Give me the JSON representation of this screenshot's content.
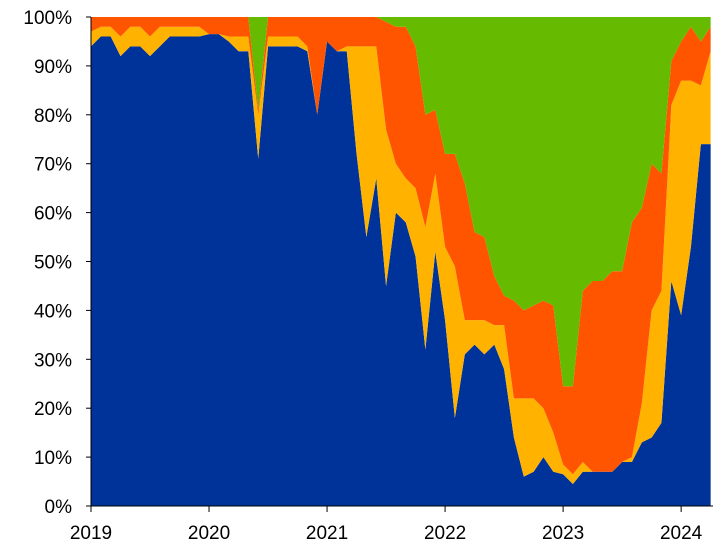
{
  "chart_data": {
    "type": "area",
    "stacked": true,
    "percent": true,
    "title": "",
    "xlabel": "",
    "ylabel": "",
    "ylim": [
      0,
      100
    ],
    "x_ticks": [
      "2019",
      "2020",
      "2021",
      "2022",
      "2023",
      "2024"
    ],
    "y_ticks": [
      "0%",
      "10%",
      "20%",
      "30%",
      "40%",
      "50%",
      "60%",
      "70%",
      "80%",
      "90%",
      "100%"
    ],
    "x": [
      2019.0,
      2019.083,
      2019.167,
      2019.25,
      2019.333,
      2019.417,
      2019.5,
      2019.583,
      2019.667,
      2019.75,
      2019.833,
      2019.917,
      2020.0,
      2020.083,
      2020.167,
      2020.25,
      2020.333,
      2020.417,
      2020.5,
      2020.583,
      2020.667,
      2020.75,
      2020.833,
      2020.917,
      2021.0,
      2021.083,
      2021.167,
      2021.25,
      2021.333,
      2021.417,
      2021.5,
      2021.583,
      2021.667,
      2021.75,
      2021.833,
      2021.917,
      2022.0,
      2022.083,
      2022.167,
      2022.25,
      2022.333,
      2022.417,
      2022.5,
      2022.583,
      2022.667,
      2022.75,
      2022.833,
      2022.917,
      2023.0,
      2023.083,
      2023.167,
      2023.25,
      2023.333,
      2023.417,
      2023.5,
      2023.583,
      2023.667,
      2023.75,
      2023.833,
      2023.917,
      2024.0,
      2024.083,
      2024.167,
      2024.25
    ],
    "series": [
      {
        "color": "#003399",
        "values": [
          94,
          96,
          96,
          92,
          94,
          94,
          92,
          94,
          96,
          96,
          96,
          96,
          96.5,
          96.5,
          95,
          93,
          93,
          71,
          94,
          94,
          94,
          94,
          93,
          80,
          95,
          93,
          93,
          72,
          55,
          67,
          45,
          60,
          58,
          51,
          32,
          52,
          38,
          18,
          31,
          33,
          31,
          33,
          28,
          14,
          6,
          7,
          10,
          7,
          6.5,
          4.5,
          7,
          7,
          7,
          7,
          9,
          9,
          13,
          14,
          17,
          46,
          39,
          53,
          74,
          74
        ]
      },
      {
        "color": "#FFB300",
        "values": [
          3,
          2,
          2,
          4,
          4,
          4,
          4,
          4,
          2,
          2,
          2,
          2,
          0,
          0,
          1,
          3,
          3,
          9,
          2,
          2,
          2,
          2,
          1,
          0,
          0,
          0,
          1,
          22,
          39,
          27,
          32,
          10,
          9,
          14,
          25,
          16,
          15,
          31,
          7,
          5,
          7,
          4,
          9,
          8,
          16,
          15,
          10,
          8,
          2,
          2,
          2,
          0,
          0,
          0,
          0,
          1,
          8,
          26,
          27,
          36,
          48,
          34,
          12,
          19
        ]
      },
      {
        "color": "#FF5500",
        "values": [
          3,
          2,
          2,
          4,
          2,
          2,
          4,
          2,
          2,
          2,
          2,
          2,
          3.5,
          3.5,
          4,
          4,
          4,
          1,
          4,
          4,
          4,
          4,
          6,
          20,
          5,
          7,
          6,
          6,
          6,
          6,
          22,
          28,
          31,
          29,
          23,
          13,
          19,
          23,
          28,
          18,
          17,
          10,
          6,
          20,
          18,
          19,
          22,
          26,
          16,
          18,
          35,
          39,
          39,
          41,
          39,
          48,
          40,
          30,
          24,
          9,
          8,
          11,
          9,
          5
        ]
      },
      {
        "color": "#66BB00",
        "values": [
          0,
          0,
          0,
          0,
          0,
          0,
          0,
          0,
          0,
          0,
          0,
          0,
          0,
          0,
          0,
          0,
          0,
          19,
          0,
          0,
          0,
          0,
          0,
          0,
          0,
          0,
          0,
          0,
          0,
          0,
          1,
          2,
          2,
          6,
          20,
          19,
          28,
          28,
          34,
          44,
          45,
          53,
          57,
          58,
          60,
          59,
          58,
          59,
          75.5,
          75.5,
          56,
          54,
          54,
          52,
          52,
          42,
          39,
          30,
          32,
          9,
          5,
          2,
          5,
          2
        ]
      }
    ]
  }
}
